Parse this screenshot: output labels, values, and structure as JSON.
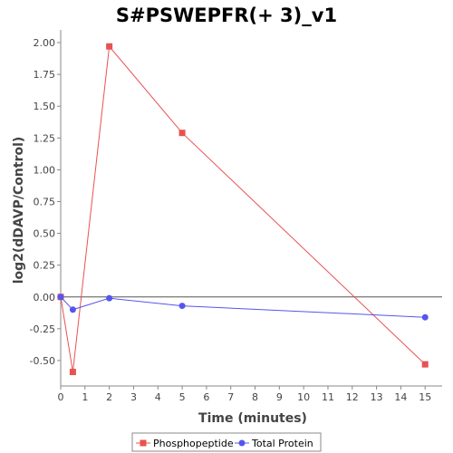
{
  "chart_data": {
    "type": "line",
    "title": "S#PSWEPFR(+ 3)_v1",
    "xlabel": "Time (minutes)",
    "ylabel": "log2(dDAVP/Control)",
    "xlim": [
      0,
      15.7
    ],
    "ylim": [
      -0.7,
      2.1
    ],
    "x_ticks": [
      0,
      1,
      2,
      3,
      4,
      5,
      6,
      7,
      8,
      9,
      10,
      11,
      12,
      13,
      14,
      15
    ],
    "y_ticks": [
      -0.5,
      -0.25,
      0,
      0.25,
      0.5,
      0.75,
      1,
      1.25,
      1.5,
      1.75,
      2
    ],
    "y_tick_labels": [
      "-0.50",
      "-0.25",
      "0.00",
      "0.25",
      "0.50",
      "0.75",
      "1.00",
      "1.25",
      "1.50",
      "1.75",
      "2.00"
    ],
    "zero_line": true,
    "grid": false,
    "legend_position": "bottom",
    "series": [
      {
        "name": "Phosphopeptide",
        "color": "#e85252",
        "marker": "square",
        "x": [
          0,
          0.5,
          2,
          5,
          15
        ],
        "y": [
          0.0,
          -0.59,
          1.97,
          1.29,
          -0.53
        ]
      },
      {
        "name": "Total Protein",
        "color": "#5555ee",
        "marker": "circle",
        "x": [
          0,
          0.5,
          2,
          5,
          15
        ],
        "y": [
          0.0,
          -0.1,
          -0.01,
          -0.07,
          -0.16
        ]
      }
    ]
  }
}
